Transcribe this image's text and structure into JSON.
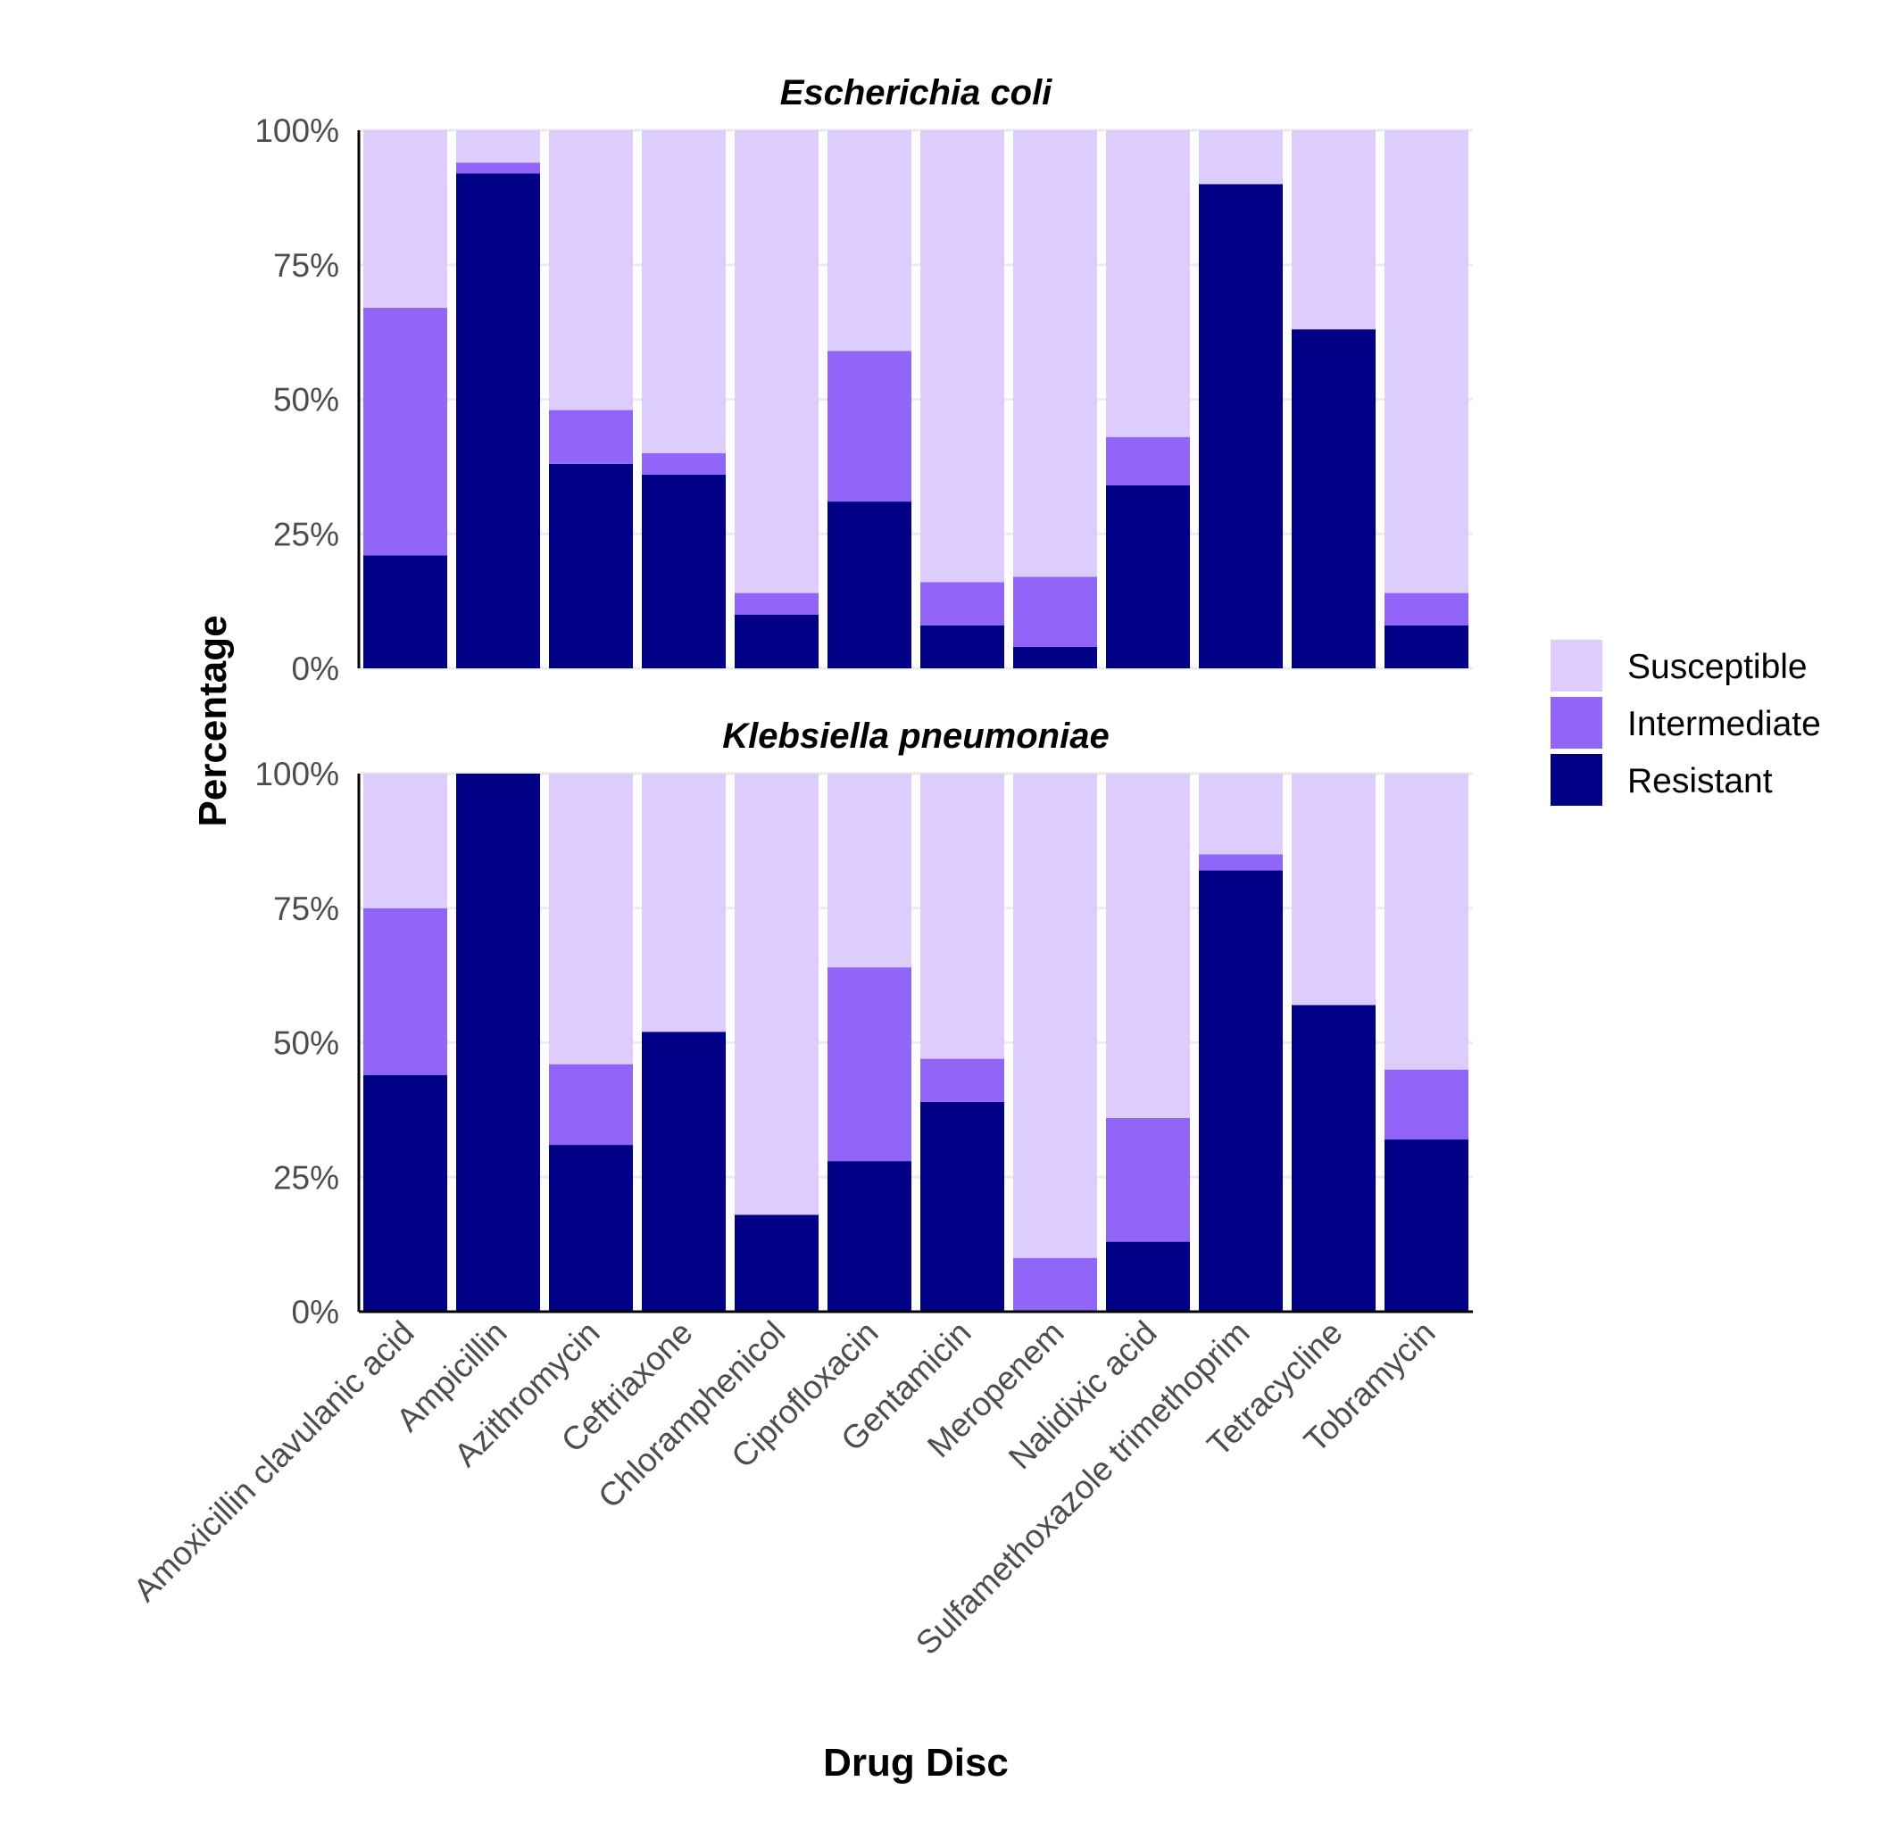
{
  "chart_data": {
    "type": "bar",
    "stacked": true,
    "xlabel": "Drug Disc",
    "ylabel": "Percentage",
    "ylim": [
      0,
      100
    ],
    "y_ticks": [
      "0%",
      "25%",
      "50%",
      "75%",
      "100%"
    ],
    "grid": true,
    "legend_position": "right",
    "categories": [
      "Amoxicillin clavulanic acid",
      "Ampicillin",
      "Azithromycin",
      "Ceftriaxone",
      "Chloramphenicol",
      "Ciprofloxacin",
      "Gentamicin",
      "Meropenem",
      "Nalidixic acid",
      "Sulfamethoxazole trimethoprim",
      "Tetracycline",
      "Tobramycin"
    ],
    "legend": [
      {
        "name": "Susceptible",
        "color": "#dccdfc"
      },
      {
        "name": "Intermediate",
        "color": "#9265f9"
      },
      {
        "name": "Resistant",
        "color": "#000086"
      }
    ],
    "panels": [
      {
        "title": "Escherichia coli",
        "series": [
          {
            "name": "Resistant",
            "values": [
              21,
              92,
              38,
              36,
              10,
              31,
              8,
              4,
              34,
              90,
              63,
              8
            ]
          },
          {
            "name": "Intermediate",
            "values": [
              46,
              2,
              10,
              4,
              4,
              28,
              8,
              13,
              9,
              0,
              0,
              6
            ]
          },
          {
            "name": "Susceptible",
            "values": [
              33,
              6,
              52,
              60,
              86,
              41,
              84,
              83,
              57,
              10,
              37,
              86
            ]
          }
        ]
      },
      {
        "title": "Klebsiella pneumoniae",
        "series": [
          {
            "name": "Resistant",
            "values": [
              44,
              100,
              31,
              52,
              18,
              28,
              39,
              0,
              13,
              82,
              57,
              32
            ]
          },
          {
            "name": "Intermediate",
            "values": [
              31,
              0,
              15,
              0,
              0,
              36,
              8,
              10,
              23,
              3,
              0,
              13
            ]
          },
          {
            "name": "Susceptible",
            "values": [
              25,
              0,
              54,
              48,
              82,
              36,
              53,
              90,
              64,
              15,
              43,
              55
            ]
          }
        ]
      }
    ]
  }
}
